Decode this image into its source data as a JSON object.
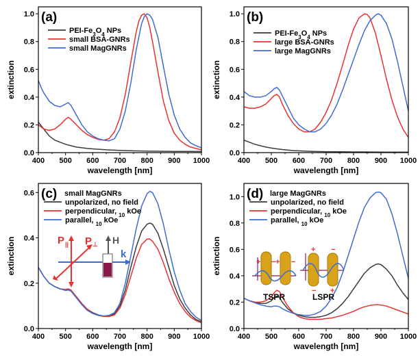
{
  "chart_data": [
    {
      "panel": "(a)",
      "type": "line",
      "xlabel": "wavelength [nm]",
      "ylabel": "extinction",
      "xlim": [
        400,
        1000
      ],
      "ylim": [
        0,
        1.05
      ],
      "xticks": [
        "400",
        "500",
        "600",
        "700",
        "800",
        "900",
        "1000"
      ],
      "yticks": [
        "0.0",
        "0.2",
        "0.4",
        "0.6",
        "0.8",
        "1.0"
      ],
      "ytick_values": [
        0,
        0.2,
        0.4,
        0.6,
        0.8,
        1.0
      ],
      "legend_title": "",
      "legend_position": "top-left",
      "series": [
        {
          "name": "PEI-Fe3O4 NPs",
          "color": "#3a3a3a",
          "x": [
            400,
            420,
            440,
            460,
            480,
            500,
            520,
            540,
            560,
            580,
            600,
            650,
            700,
            750,
            800,
            850,
            900,
            950,
            1000
          ],
          "y": [
            0.22,
            0.17,
            0.12,
            0.09,
            0.075,
            0.06,
            0.05,
            0.04,
            0.035,
            0.03,
            0.027,
            0.02,
            0.016,
            0.013,
            0.011,
            0.01,
            0.009,
            0.009,
            0.008
          ]
        },
        {
          "name": "small BSA-GNRs",
          "color": "#e8312f",
          "x": [
            400,
            420,
            440,
            460,
            480,
            500,
            510,
            520,
            540,
            560,
            580,
            600,
            620,
            640,
            660,
            680,
            700,
            720,
            740,
            760,
            770,
            780,
            790,
            800,
            810,
            820,
            840,
            860,
            880,
            900,
            920,
            940,
            960,
            980,
            1000
          ],
          "y": [
            0.2,
            0.17,
            0.16,
            0.17,
            0.2,
            0.24,
            0.255,
            0.24,
            0.2,
            0.16,
            0.13,
            0.11,
            0.095,
            0.09,
            0.1,
            0.15,
            0.25,
            0.42,
            0.65,
            0.87,
            0.95,
            0.99,
            1.0,
            0.97,
            0.9,
            0.8,
            0.58,
            0.37,
            0.23,
            0.14,
            0.09,
            0.06,
            0.04,
            0.03,
            0.02
          ]
        },
        {
          "name": "small MagGNRs",
          "color": "#3d6bd4",
          "x": [
            400,
            410,
            420,
            440,
            460,
            480,
            500,
            510,
            520,
            540,
            560,
            580,
            600,
            620,
            640,
            660,
            680,
            700,
            720,
            740,
            760,
            780,
            790,
            800,
            810,
            820,
            840,
            860,
            880,
            900,
            920,
            940,
            960,
            980,
            1000
          ],
          "y": [
            0.52,
            0.47,
            0.43,
            0.37,
            0.34,
            0.33,
            0.35,
            0.36,
            0.34,
            0.27,
            0.2,
            0.15,
            0.12,
            0.1,
            0.09,
            0.085,
            0.1,
            0.17,
            0.3,
            0.5,
            0.74,
            0.93,
            0.98,
            1.0,
            0.99,
            0.96,
            0.83,
            0.62,
            0.42,
            0.27,
            0.17,
            0.11,
            0.07,
            0.05,
            0.035
          ]
        }
      ]
    },
    {
      "panel": "(b)",
      "type": "line",
      "xlabel": "wavelength [nm]",
      "ylabel": "extinction",
      "xlim": [
        400,
        1000
      ],
      "ylim": [
        0,
        1.05
      ],
      "xticks": [
        "400",
        "500",
        "600",
        "700",
        "800",
        "900",
        "1000"
      ],
      "yticks": [
        "0.0",
        "0.2",
        "0.4",
        "0.6",
        "0.8",
        "1.0"
      ],
      "ytick_values": [
        0,
        0.2,
        0.4,
        0.6,
        0.8,
        1.0
      ],
      "legend_title": "",
      "legend_position": "top-left",
      "series": [
        {
          "name": "PEI-Fe3O4 NPs",
          "color": "#3a3a3a",
          "x": [
            400,
            420,
            440,
            460,
            480,
            500,
            520,
            540,
            560,
            580,
            600,
            650,
            700,
            750,
            800,
            850,
            900,
            950,
            1000
          ],
          "y": [
            0.09,
            0.075,
            0.06,
            0.05,
            0.04,
            0.033,
            0.027,
            0.022,
            0.018,
            0.015,
            0.013,
            0.009,
            0.007,
            0.006,
            0.005,
            0.005,
            0.004,
            0.004,
            0.004
          ]
        },
        {
          "name": "large BSA-GNRs",
          "color": "#e8312f",
          "x": [
            400,
            420,
            440,
            460,
            480,
            500,
            510,
            520,
            530,
            540,
            560,
            580,
            600,
            620,
            640,
            660,
            680,
            700,
            720,
            740,
            760,
            780,
            800,
            820,
            840,
            850,
            860,
            880,
            900,
            920,
            940,
            960,
            980,
            1000
          ],
          "y": [
            0.33,
            0.32,
            0.32,
            0.33,
            0.35,
            0.39,
            0.41,
            0.42,
            0.4,
            0.35,
            0.27,
            0.21,
            0.17,
            0.15,
            0.15,
            0.17,
            0.22,
            0.29,
            0.38,
            0.5,
            0.63,
            0.77,
            0.89,
            0.97,
            1.0,
            0.995,
            0.97,
            0.86,
            0.7,
            0.53,
            0.38,
            0.26,
            0.17,
            0.11
          ]
        },
        {
          "name": "large MagGNRs",
          "color": "#3d6bd4",
          "x": [
            400,
            420,
            440,
            460,
            480,
            500,
            510,
            520,
            530,
            540,
            560,
            580,
            600,
            620,
            640,
            660,
            680,
            700,
            720,
            740,
            760,
            780,
            800,
            820,
            840,
            860,
            880,
            890,
            900,
            920,
            940,
            960,
            980,
            1000
          ],
          "y": [
            0.44,
            0.41,
            0.4,
            0.4,
            0.41,
            0.44,
            0.46,
            0.47,
            0.45,
            0.41,
            0.33,
            0.25,
            0.2,
            0.17,
            0.15,
            0.15,
            0.17,
            0.21,
            0.27,
            0.35,
            0.45,
            0.56,
            0.67,
            0.78,
            0.88,
            0.95,
            0.99,
            1.0,
            0.99,
            0.93,
            0.82,
            0.66,
            0.48,
            0.3
          ]
        }
      ]
    },
    {
      "panel": "(c)",
      "type": "line",
      "xlabel": "wavelength [nm]",
      "ylabel": "extinction",
      "xlim": [
        400,
        1000
      ],
      "ylim": [
        0,
        0.64
      ],
      "xticks": [
        "400",
        "500",
        "600",
        "700",
        "800",
        "900",
        "1000"
      ],
      "yticks": [
        "0.0",
        "0.2",
        "0.4",
        "0.6"
      ],
      "ytick_values": [
        0,
        0.2,
        0.4,
        0.6
      ],
      "legend_title": "small MagGNRs",
      "legend_position": "top-left",
      "series": [
        {
          "name": "unpolarized, no field",
          "color": "#3a3a3a",
          "x": [
            400,
            420,
            440,
            460,
            480,
            500,
            510,
            520,
            540,
            560,
            580,
            600,
            620,
            640,
            660,
            680,
            700,
            720,
            740,
            760,
            780,
            800,
            810,
            820,
            840,
            860,
            880,
            900,
            920,
            940,
            960,
            980,
            1000
          ],
          "y": [
            0.27,
            0.23,
            0.2,
            0.185,
            0.175,
            0.17,
            0.172,
            0.168,
            0.14,
            0.11,
            0.085,
            0.07,
            0.06,
            0.055,
            0.055,
            0.065,
            0.1,
            0.17,
            0.27,
            0.36,
            0.43,
            0.46,
            0.465,
            0.46,
            0.42,
            0.35,
            0.27,
            0.19,
            0.13,
            0.09,
            0.06,
            0.04,
            0.03
          ]
        },
        {
          "name": "perpendicular, 10 kOe",
          "color": "#e8312f",
          "x": [
            400,
            420,
            440,
            460,
            480,
            500,
            510,
            520,
            540,
            560,
            580,
            600,
            620,
            640,
            660,
            680,
            700,
            720,
            740,
            760,
            780,
            800,
            810,
            820,
            840,
            860,
            880,
            900,
            920,
            940,
            960,
            980,
            1000
          ],
          "y": [
            0.27,
            0.23,
            0.2,
            0.185,
            0.175,
            0.172,
            0.175,
            0.17,
            0.14,
            0.11,
            0.085,
            0.068,
            0.058,
            0.053,
            0.053,
            0.06,
            0.09,
            0.15,
            0.23,
            0.31,
            0.37,
            0.395,
            0.395,
            0.385,
            0.35,
            0.29,
            0.22,
            0.16,
            0.11,
            0.075,
            0.05,
            0.035,
            0.025
          ]
        },
        {
          "name": "parallel, 10 kOe",
          "color": "#3d6bd4",
          "x": [
            400,
            420,
            440,
            460,
            480,
            500,
            510,
            520,
            540,
            560,
            580,
            600,
            620,
            640,
            660,
            680,
            700,
            720,
            740,
            760,
            780,
            800,
            810,
            820,
            840,
            860,
            880,
            900,
            920,
            940,
            960,
            980,
            1000
          ],
          "y": [
            0.27,
            0.23,
            0.2,
            0.185,
            0.175,
            0.168,
            0.17,
            0.165,
            0.135,
            0.105,
            0.08,
            0.066,
            0.058,
            0.055,
            0.058,
            0.07,
            0.11,
            0.2,
            0.32,
            0.44,
            0.54,
            0.595,
            0.605,
            0.6,
            0.55,
            0.46,
            0.35,
            0.25,
            0.17,
            0.11,
            0.075,
            0.05,
            0.035
          ]
        }
      ]
    },
    {
      "panel": "(d)",
      "type": "line",
      "xlabel": "wavelength [nm]",
      "ylabel": "extinction",
      "xlim": [
        400,
        1000
      ],
      "ylim": [
        0,
        1.1
      ],
      "xticks": [
        "400",
        "500",
        "600",
        "700",
        "800",
        "900",
        "1000"
      ],
      "yticks": [
        "0.0",
        "0.2",
        "0.4",
        "0.6",
        "0.8",
        "1.0"
      ],
      "ytick_values": [
        0,
        0.2,
        0.4,
        0.6,
        0.8,
        1.0
      ],
      "legend_title": "large MagGNRs",
      "legend_position": "top-left",
      "series": [
        {
          "name": "unpolarized, no field",
          "color": "#3a3a3a",
          "x": [
            400,
            420,
            440,
            460,
            480,
            500,
            510,
            520,
            530,
            540,
            560,
            580,
            600,
            620,
            640,
            660,
            680,
            700,
            720,
            740,
            760,
            780,
            800,
            820,
            840,
            860,
            880,
            890,
            900,
            920,
            940,
            960,
            980,
            1000
          ],
          "y": [
            0.23,
            0.21,
            0.2,
            0.19,
            0.19,
            0.21,
            0.235,
            0.245,
            0.235,
            0.2,
            0.15,
            0.12,
            0.1,
            0.09,
            0.085,
            0.085,
            0.09,
            0.1,
            0.12,
            0.15,
            0.19,
            0.24,
            0.3,
            0.36,
            0.42,
            0.46,
            0.485,
            0.49,
            0.485,
            0.45,
            0.4,
            0.33,
            0.27,
            0.22
          ]
        },
        {
          "name": "perpendicular, 10 kOe",
          "color": "#e8312f",
          "x": [
            400,
            420,
            440,
            460,
            480,
            500,
            510,
            520,
            530,
            540,
            560,
            580,
            600,
            620,
            640,
            660,
            680,
            700,
            720,
            740,
            760,
            780,
            800,
            820,
            840,
            860,
            880,
            890,
            900,
            920,
            940,
            960,
            980,
            1000
          ],
          "y": [
            0.23,
            0.21,
            0.2,
            0.2,
            0.21,
            0.24,
            0.27,
            0.29,
            0.28,
            0.24,
            0.17,
            0.12,
            0.09,
            0.075,
            0.07,
            0.07,
            0.07,
            0.075,
            0.08,
            0.09,
            0.1,
            0.115,
            0.13,
            0.15,
            0.165,
            0.175,
            0.18,
            0.18,
            0.178,
            0.17,
            0.155,
            0.14,
            0.125,
            0.11
          ]
        },
        {
          "name": "parallel, 10 kOe",
          "color": "#3d6bd4",
          "x": [
            400,
            420,
            440,
            460,
            480,
            500,
            510,
            520,
            530,
            540,
            560,
            580,
            600,
            620,
            640,
            660,
            680,
            700,
            720,
            740,
            760,
            780,
            800,
            820,
            840,
            860,
            880,
            890,
            900,
            920,
            940,
            960,
            980,
            1000
          ],
          "y": [
            0.23,
            0.21,
            0.195,
            0.18,
            0.17,
            0.165,
            0.17,
            0.17,
            0.165,
            0.15,
            0.13,
            0.115,
            0.105,
            0.1,
            0.1,
            0.11,
            0.13,
            0.17,
            0.23,
            0.31,
            0.42,
            0.55,
            0.68,
            0.81,
            0.92,
            0.99,
            1.03,
            1.035,
            1.03,
            0.98,
            0.87,
            0.72,
            0.55,
            0.38
          ]
        }
      ]
    }
  ],
  "inset_c": {
    "p_parallel": "P",
    "p_parallel_sub": "||",
    "p_perp": "P",
    "p_perp_sub": "⊥",
    "h_label": "H",
    "k_label": "k",
    "colors": {
      "arrows": "#e8312f",
      "k_arrow": "#3d6bd4",
      "cuvette": "#8b1a4a"
    }
  },
  "inset_d": {
    "tspr_label": "TSPR",
    "lspr_label": "LSPR",
    "plus": "+",
    "minus": "−",
    "colors": {
      "rod": "#d9a21b",
      "wave": "#3d6bd4",
      "axis": "#8b1a4a",
      "charge": "#e8312f"
    }
  }
}
